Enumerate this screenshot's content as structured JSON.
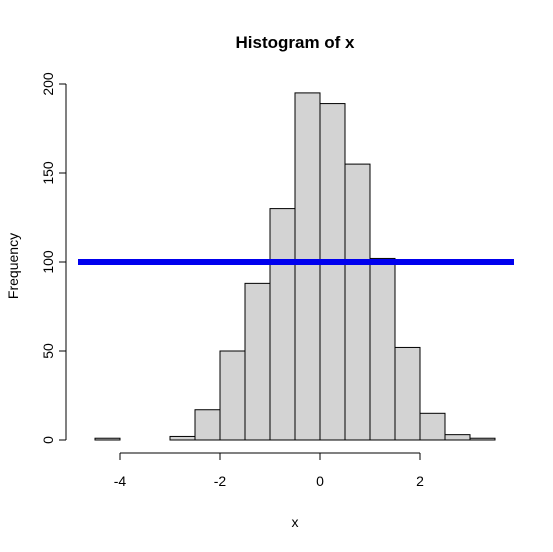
{
  "chart_data": {
    "type": "bar",
    "title": "Histogram of x",
    "xlabel": "x",
    "ylabel": "Frequency",
    "bins": [
      {
        "x0": -4.5,
        "x1": -4.0,
        "count": 1
      },
      {
        "x0": -4.0,
        "x1": -3.5,
        "count": 0
      },
      {
        "x0": -3.5,
        "x1": -3.0,
        "count": 0
      },
      {
        "x0": -3.0,
        "x1": -2.5,
        "count": 2
      },
      {
        "x0": -2.5,
        "x1": -2.0,
        "count": 17
      },
      {
        "x0": -2.0,
        "x1": -1.5,
        "count": 50
      },
      {
        "x0": -1.5,
        "x1": -1.0,
        "count": 88
      },
      {
        "x0": -1.0,
        "x1": -0.5,
        "count": 130
      },
      {
        "x0": -0.5,
        "x1": 0.0,
        "count": 195
      },
      {
        "x0": 0.0,
        "x1": 0.5,
        "count": 189
      },
      {
        "x0": 0.5,
        "x1": 1.0,
        "count": 155
      },
      {
        "x0": 1.0,
        "x1": 1.5,
        "count": 102
      },
      {
        "x0": 1.5,
        "x1": 2.0,
        "count": 52
      },
      {
        "x0": 2.0,
        "x1": 2.5,
        "count": 15
      },
      {
        "x0": 2.5,
        "x1": 3.0,
        "count": 3
      },
      {
        "x0": 3.0,
        "x1": 3.5,
        "count": 1
      }
    ],
    "xticks": [
      -4,
      -2,
      0,
      2
    ],
    "xtick_labels": [
      "-4",
      "-2",
      "0",
      "2"
    ],
    "yticks": [
      0,
      50,
      100,
      150,
      200
    ],
    "ytick_labels": [
      "0",
      "50",
      "100",
      "150",
      "200"
    ],
    "hline": {
      "y": 100,
      "color": "#0000ee"
    },
    "bar_fill": "#d3d3d3",
    "bar_stroke": "#000000",
    "grid": false,
    "legend": "none"
  }
}
